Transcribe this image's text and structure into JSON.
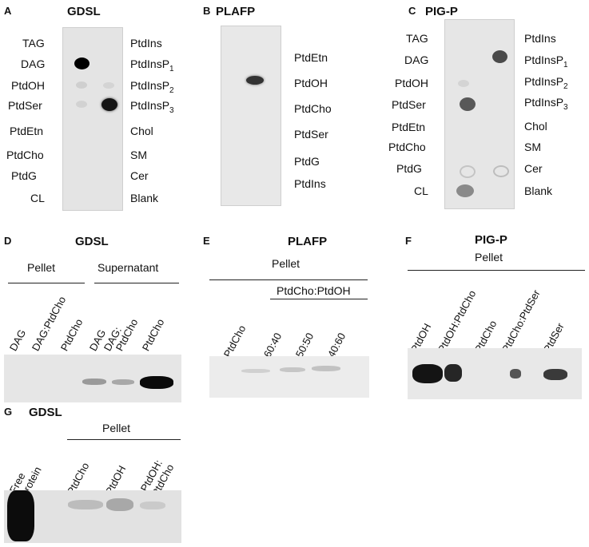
{
  "panelA": {
    "letter": "A",
    "title": "GDSL",
    "left_labels": [
      "TAG",
      "DAG",
      "PtdOH",
      "PtdSer",
      "PtdEtn",
      "PtdCho",
      "PtdG",
      "CL"
    ],
    "right_labels": [
      {
        "base": "PtdIns",
        "sub": ""
      },
      {
        "base": "PtdInsP",
        "sub": "1"
      },
      {
        "base": "PtdInsP",
        "sub": "2"
      },
      {
        "base": "PtdInsP",
        "sub": "3"
      },
      {
        "base": "Chol",
        "sub": ""
      },
      {
        "base": "SM",
        "sub": ""
      },
      {
        "base": "Cer",
        "sub": ""
      },
      {
        "base": "Blank",
        "sub": ""
      }
    ]
  },
  "panelB": {
    "letter": "B",
    "title": "PLAFP",
    "labels": [
      "PtdEtn",
      "PtdOH",
      "PtdCho",
      "PtdSer",
      "PtdG",
      "PtdIns"
    ]
  },
  "panelC": {
    "letter": "C",
    "title": "PIG-P",
    "left_labels": [
      "TAG",
      "DAG",
      "PtdOH",
      "PtdSer",
      "PtdEtn",
      "PtdCho",
      "PtdG",
      "CL"
    ],
    "right_labels": [
      {
        "base": "PtdIns",
        "sub": ""
      },
      {
        "base": "PtdInsP",
        "sub": "1"
      },
      {
        "base": "PtdInsP",
        "sub": "2"
      },
      {
        "base": "PtdInsP",
        "sub": "3"
      },
      {
        "base": "Chol",
        "sub": ""
      },
      {
        "base": "SM",
        "sub": ""
      },
      {
        "base": "Cer",
        "sub": ""
      },
      {
        "base": "Blank",
        "sub": ""
      }
    ]
  },
  "panelD": {
    "letter": "D",
    "title": "GDSL",
    "group_pellet": "Pellet",
    "group_supernatant": "Supernatant",
    "lanes": [
      "DAG",
      "DAG:PtdCho",
      "PtdCho",
      "DAG",
      "DAG:",
      "PtdCho",
      "PtdCho"
    ]
  },
  "panelE": {
    "letter": "E",
    "title": "PLAFP",
    "group": "Pellet",
    "subgroup": "PtdCho:PtdOH",
    "lanes": [
      "PtdCho",
      "60:40",
      "50:50",
      "40:60"
    ]
  },
  "panelF": {
    "letter": "F",
    "title": "PIG-P",
    "group": "Pellet",
    "lanes": [
      "PtdOH",
      "PtdOH:PtdCho",
      "PtdCho",
      "PtdCho:PtdSer",
      "PtdSer"
    ]
  },
  "panelG": {
    "letter": "G",
    "title": "GDSL",
    "group": "Pellet",
    "lanes": [
      "Free",
      "protein",
      "PtdCho",
      "PtdOH",
      "PtdOH:",
      "PtdCho"
    ]
  }
}
